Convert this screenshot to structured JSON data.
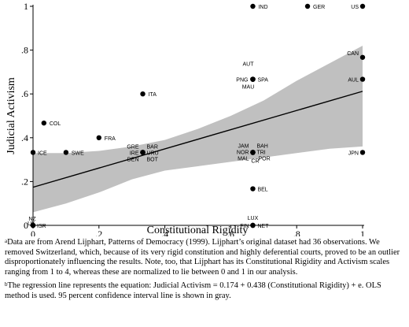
{
  "chart_data": {
    "type": "scatter",
    "xlabel": "Constitutional Rigidity",
    "ylabel": "Judicial Activism",
    "xlim": [
      0,
      1
    ],
    "ylim": [
      0,
      1
    ],
    "xticks": [
      0,
      0.2,
      0.4,
      0.6,
      0.8,
      1
    ],
    "xtick_labels": [
      "0",
      ".2",
      ".4",
      ".6",
      ".8",
      "1"
    ],
    "yticks": [
      0,
      0.2,
      0.4,
      0.6,
      0.8,
      1
    ],
    "ytick_labels": [
      "0",
      ".2",
      ".4",
      ".6",
      ".8",
      "1"
    ],
    "grid": false,
    "regression": {
      "intercept": 0.174,
      "slope": 0.438
    },
    "confidence_band": {
      "x": [
        0,
        0.1,
        0.2,
        0.3,
        0.4,
        0.5,
        0.6,
        0.7,
        0.8,
        0.9,
        1.0
      ],
      "lower": [
        0.06,
        0.1,
        0.15,
        0.21,
        0.25,
        0.27,
        0.29,
        0.31,
        0.33,
        0.35,
        0.36
      ],
      "upper": [
        0.33,
        0.33,
        0.34,
        0.36,
        0.39,
        0.44,
        0.5,
        0.57,
        0.66,
        0.74,
        0.82
      ]
    },
    "points": [
      {
        "label": "IND",
        "x": 0.667,
        "y": 1.0
      },
      {
        "label": "GER",
        "x": 0.833,
        "y": 1.0
      },
      {
        "label": "US",
        "x": 1.0,
        "y": 1.0
      },
      {
        "label": "CAN",
        "x": 1.0,
        "y": 0.767
      },
      {
        "label": "AUL",
        "x": 1.0,
        "y": 0.667
      },
      {
        "label": "AUT",
        "x": 0.667,
        "y": 0.667
      },
      {
        "label": "PNG",
        "x": 0.667,
        "y": 0.667
      },
      {
        "label": "SPA",
        "x": 0.667,
        "y": 0.667
      },
      {
        "label": "MAU",
        "x": 0.667,
        "y": 0.667
      },
      {
        "label": "ITA",
        "x": 0.333,
        "y": 0.6
      },
      {
        "label": "COL",
        "x": 0.033,
        "y": 0.467
      },
      {
        "label": "FRA",
        "x": 0.2,
        "y": 0.4
      },
      {
        "label": "ICE",
        "x": 0.0,
        "y": 0.333
      },
      {
        "label": "SWE",
        "x": 0.1,
        "y": 0.333
      },
      {
        "label": "GRE",
        "x": 0.333,
        "y": 0.333
      },
      {
        "label": "BAR",
        "x": 0.333,
        "y": 0.333
      },
      {
        "label": "IRE",
        "x": 0.333,
        "y": 0.333
      },
      {
        "label": "URU",
        "x": 0.333,
        "y": 0.333
      },
      {
        "label": "DEN",
        "x": 0.333,
        "y": 0.333
      },
      {
        "label": "BOT",
        "x": 0.333,
        "y": 0.333
      },
      {
        "label": "JAM",
        "x": 0.667,
        "y": 0.333
      },
      {
        "label": "BAH",
        "x": 0.667,
        "y": 0.333
      },
      {
        "label": "NOR",
        "x": 0.667,
        "y": 0.333
      },
      {
        "label": "TRI",
        "x": 0.667,
        "y": 0.333
      },
      {
        "label": "MAL",
        "x": 0.667,
        "y": 0.333
      },
      {
        "label": "CR",
        "x": 0.667,
        "y": 0.333
      },
      {
        "label": "POR",
        "x": 0.667,
        "y": 0.333
      },
      {
        "label": "JPN",
        "x": 1.0,
        "y": 0.333
      },
      {
        "label": "BEL",
        "x": 0.667,
        "y": 0.167
      },
      {
        "label": "LUX",
        "x": 0.667,
        "y": 0.0
      },
      {
        "label": "FIN",
        "x": 0.667,
        "y": 0.0
      },
      {
        "label": "NET",
        "x": 0.667,
        "y": 0.0
      },
      {
        "label": "NZ",
        "x": 0.0,
        "y": 0.0
      },
      {
        "label": "UK",
        "x": 0.0,
        "y": 0.0
      },
      {
        "label": "ISR",
        "x": 0.0,
        "y": 0.0
      }
    ]
  },
  "notes": {
    "a": {
      "marker": "a",
      "text": "Data are from Arend Lijphart, Patterns of Democracy (1999). Lijphart’s original dataset had 36 observations. We removed Switzerland, which, because of its very rigid constitution and highly deferential courts, proved to be an outlier disproportionately influencing the results. Note, too, that Lijphart has its Constitutional Rigidity and Activism scales ranging from 1 to 4, whereas these are normalized to lie between 0 and 1 in our analysis."
    },
    "b": {
      "marker": "b",
      "text": "The regression line represents the equation: Judicial Activism = 0.174 + 0.438 (Constitutional Rigidity) + e. OLS method is used. 95 percent confidence interval line is shown in gray."
    }
  }
}
